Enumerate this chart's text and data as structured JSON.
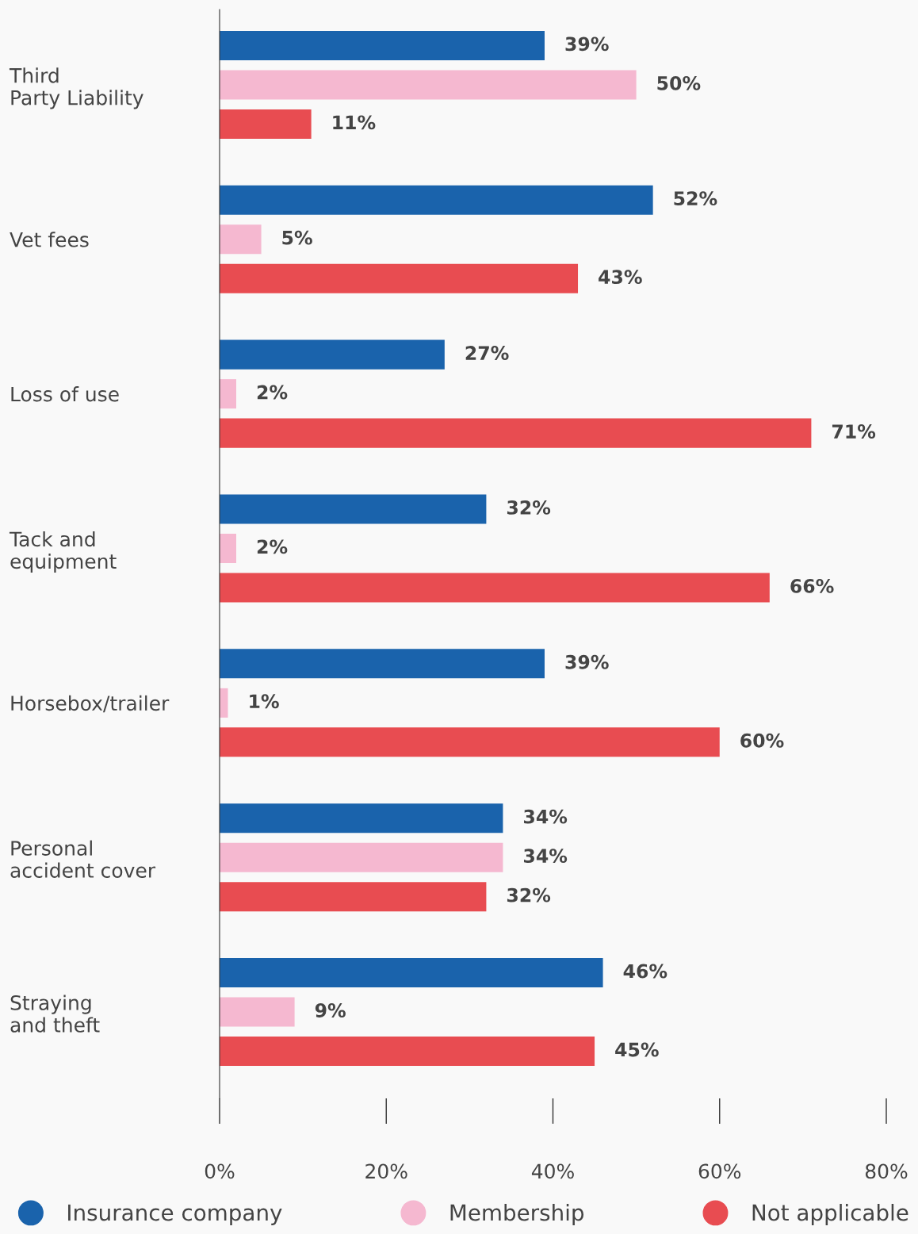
{
  "chart_data": {
    "type": "bar",
    "orientation": "horizontal",
    "categories": [
      "Third\nParty Liability",
      "Vet fees",
      "Loss of use",
      "Tack and\nequipment",
      "Horsebox/trailer",
      "Personal\naccident cover",
      "Straying\nand theft"
    ],
    "series": [
      {
        "name": "Insurance company",
        "color": "#1a63ac",
        "values": [
          39,
          52,
          27,
          32,
          39,
          34,
          46
        ],
        "value_labels": [
          "39%",
          "52%",
          "27%",
          "32%",
          "39%",
          "34%",
          "46%"
        ]
      },
      {
        "name": "Membership",
        "color": "#f5b8d0",
        "values": [
          50,
          5,
          2,
          2,
          1,
          34,
          9
        ],
        "value_labels": [
          "50%",
          "5%",
          "2%",
          "2%",
          "1%",
          "34%",
          "9%"
        ]
      },
      {
        "name": "Not applicable",
        "color": "#e84c51",
        "values": [
          11,
          43,
          71,
          66,
          60,
          32,
          45
        ],
        "value_labels": [
          "11%",
          "43%",
          "71%",
          "66%",
          "60%",
          "32%",
          "45%"
        ]
      }
    ],
    "xlim": [
      0,
      80
    ],
    "xticks": [
      {
        "value": 0,
        "label": "0%"
      },
      {
        "value": 20,
        "label": "20%"
      },
      {
        "value": 40,
        "label": "40%"
      },
      {
        "value": 60,
        "label": "60%"
      },
      {
        "value": 80,
        "label": "80%"
      }
    ],
    "grid": false,
    "legend": "bottom"
  }
}
